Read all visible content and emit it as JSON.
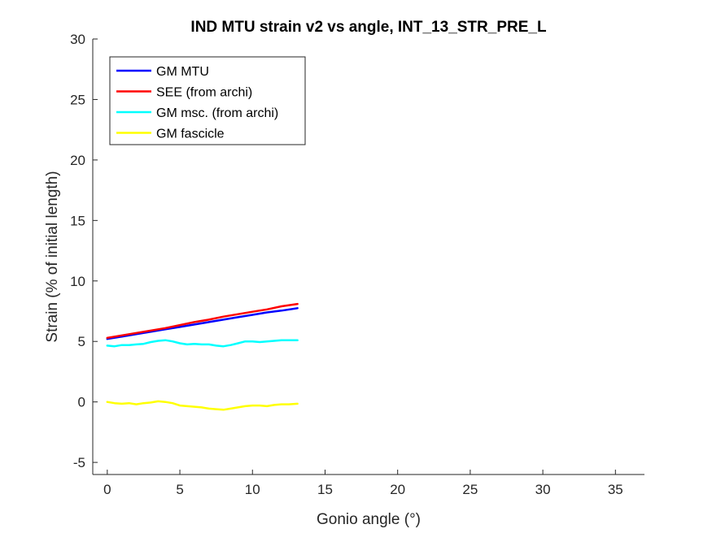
{
  "chart_data": {
    "type": "line",
    "title": "IND MTU strain v2 vs angle, INT_13_STR_PRE_L",
    "xlabel": "Gonio angle (°)",
    "ylabel": "Strain (% of initial length)",
    "xlim": [
      -1,
      37
    ],
    "ylim": [
      -6,
      30
    ],
    "xticks": [
      0,
      5,
      10,
      15,
      20,
      25,
      30,
      35
    ],
    "yticks": [
      -5,
      0,
      5,
      10,
      15,
      20,
      25,
      30
    ],
    "grid": false,
    "legend_position": "top-left",
    "series": [
      {
        "name": "GM MTU",
        "color": "#0000ff",
        "x": [
          0,
          1,
          2,
          3,
          4,
          5,
          6,
          7,
          8,
          9,
          10,
          11,
          12,
          13.1
        ],
        "y": [
          5.2,
          5.4,
          5.6,
          5.8,
          6.0,
          6.2,
          6.4,
          6.6,
          6.8,
          7.0,
          7.2,
          7.4,
          7.55,
          7.75
        ]
      },
      {
        "name": "SEE (from archi)",
        "color": "#ff0000",
        "x": [
          0,
          1,
          2,
          3,
          4,
          5,
          6,
          7,
          8,
          9,
          10,
          11,
          12,
          13.1
        ],
        "y": [
          5.3,
          5.5,
          5.7,
          5.9,
          6.1,
          6.35,
          6.6,
          6.8,
          7.05,
          7.25,
          7.45,
          7.65,
          7.9,
          8.1
        ]
      },
      {
        "name": "GM msc. (from archi)",
        "color": "#00ffff",
        "x": [
          0,
          0.5,
          1,
          1.5,
          2,
          2.5,
          3,
          3.5,
          4,
          4.5,
          5,
          5.5,
          6,
          6.5,
          7,
          7.5,
          8,
          8.5,
          9,
          9.5,
          10,
          10.5,
          11,
          11.5,
          12,
          12.5,
          13.1
        ],
        "y": [
          4.65,
          4.6,
          4.7,
          4.7,
          4.75,
          4.8,
          4.95,
          5.05,
          5.1,
          5.0,
          4.85,
          4.75,
          4.8,
          4.75,
          4.75,
          4.65,
          4.6,
          4.7,
          4.85,
          5.0,
          5.0,
          4.95,
          5.0,
          5.05,
          5.1,
          5.1,
          5.1
        ]
      },
      {
        "name": "GM fascicle",
        "color": "#ffff00",
        "x": [
          0,
          0.5,
          1,
          1.5,
          2,
          2.5,
          3,
          3.5,
          4,
          4.5,
          5,
          5.5,
          6,
          6.5,
          7,
          7.5,
          8,
          8.5,
          9,
          9.5,
          10,
          10.5,
          11,
          11.5,
          12,
          12.5,
          13.1
        ],
        "y": [
          0.0,
          -0.1,
          -0.15,
          -0.1,
          -0.2,
          -0.1,
          -0.05,
          0.05,
          0.0,
          -0.1,
          -0.3,
          -0.35,
          -0.4,
          -0.45,
          -0.55,
          -0.6,
          -0.65,
          -0.55,
          -0.45,
          -0.35,
          -0.3,
          -0.3,
          -0.35,
          -0.25,
          -0.2,
          -0.2,
          -0.15
        ]
      }
    ]
  }
}
